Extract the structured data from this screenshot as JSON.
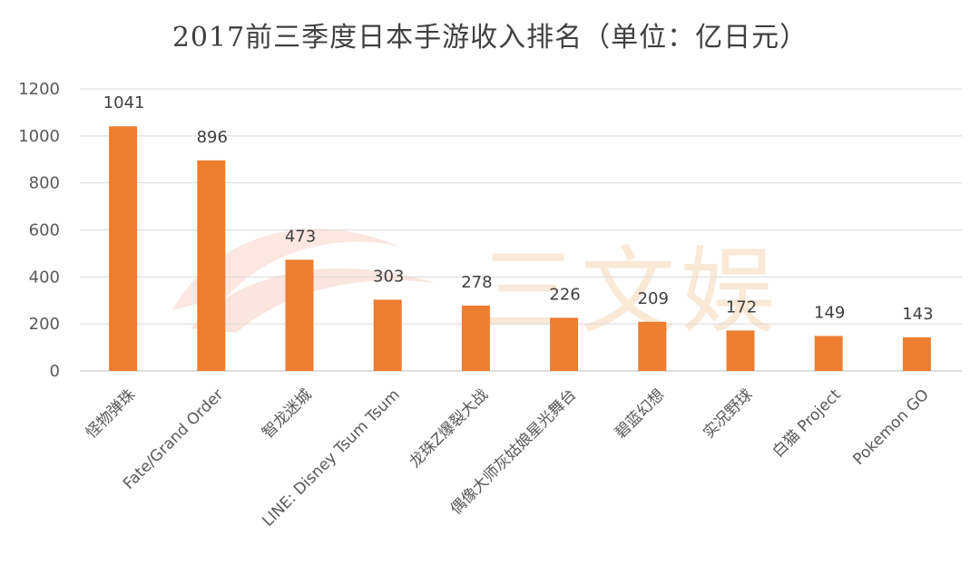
{
  "title": "2017前三季度日本手游收入排名（单位：亿日元）",
  "watermark": {
    "text": "三文娱",
    "color": "#f6cfa6"
  },
  "colors": {
    "bar": "#ed7d31",
    "grid": "#d9d9d9",
    "axis_text": "#595959",
    "label_text": "#404040"
  },
  "chart_data": {
    "type": "bar",
    "title": "2017前三季度日本手游收入排名（单位：亿日元）",
    "xlabel": "",
    "ylabel": "",
    "ylim": [
      0,
      1200
    ],
    "yticks": [
      "0",
      "200",
      "400",
      "600",
      "800",
      "1000",
      "1200"
    ],
    "grid": true,
    "categories": [
      "怪物弹珠",
      "Fate/Grand Order",
      "智龙迷城",
      "LINE: Disney Tsum Tsum",
      "龙珠Z爆裂大战",
      "偶像大师灰姑娘星光舞台",
      "碧蓝幻想",
      "实况野球",
      "白猫 Project",
      "Pokemon GO"
    ],
    "values": [
      1041,
      896,
      473,
      303,
      278,
      226,
      209,
      172,
      149,
      143
    ],
    "data_labels": true
  }
}
